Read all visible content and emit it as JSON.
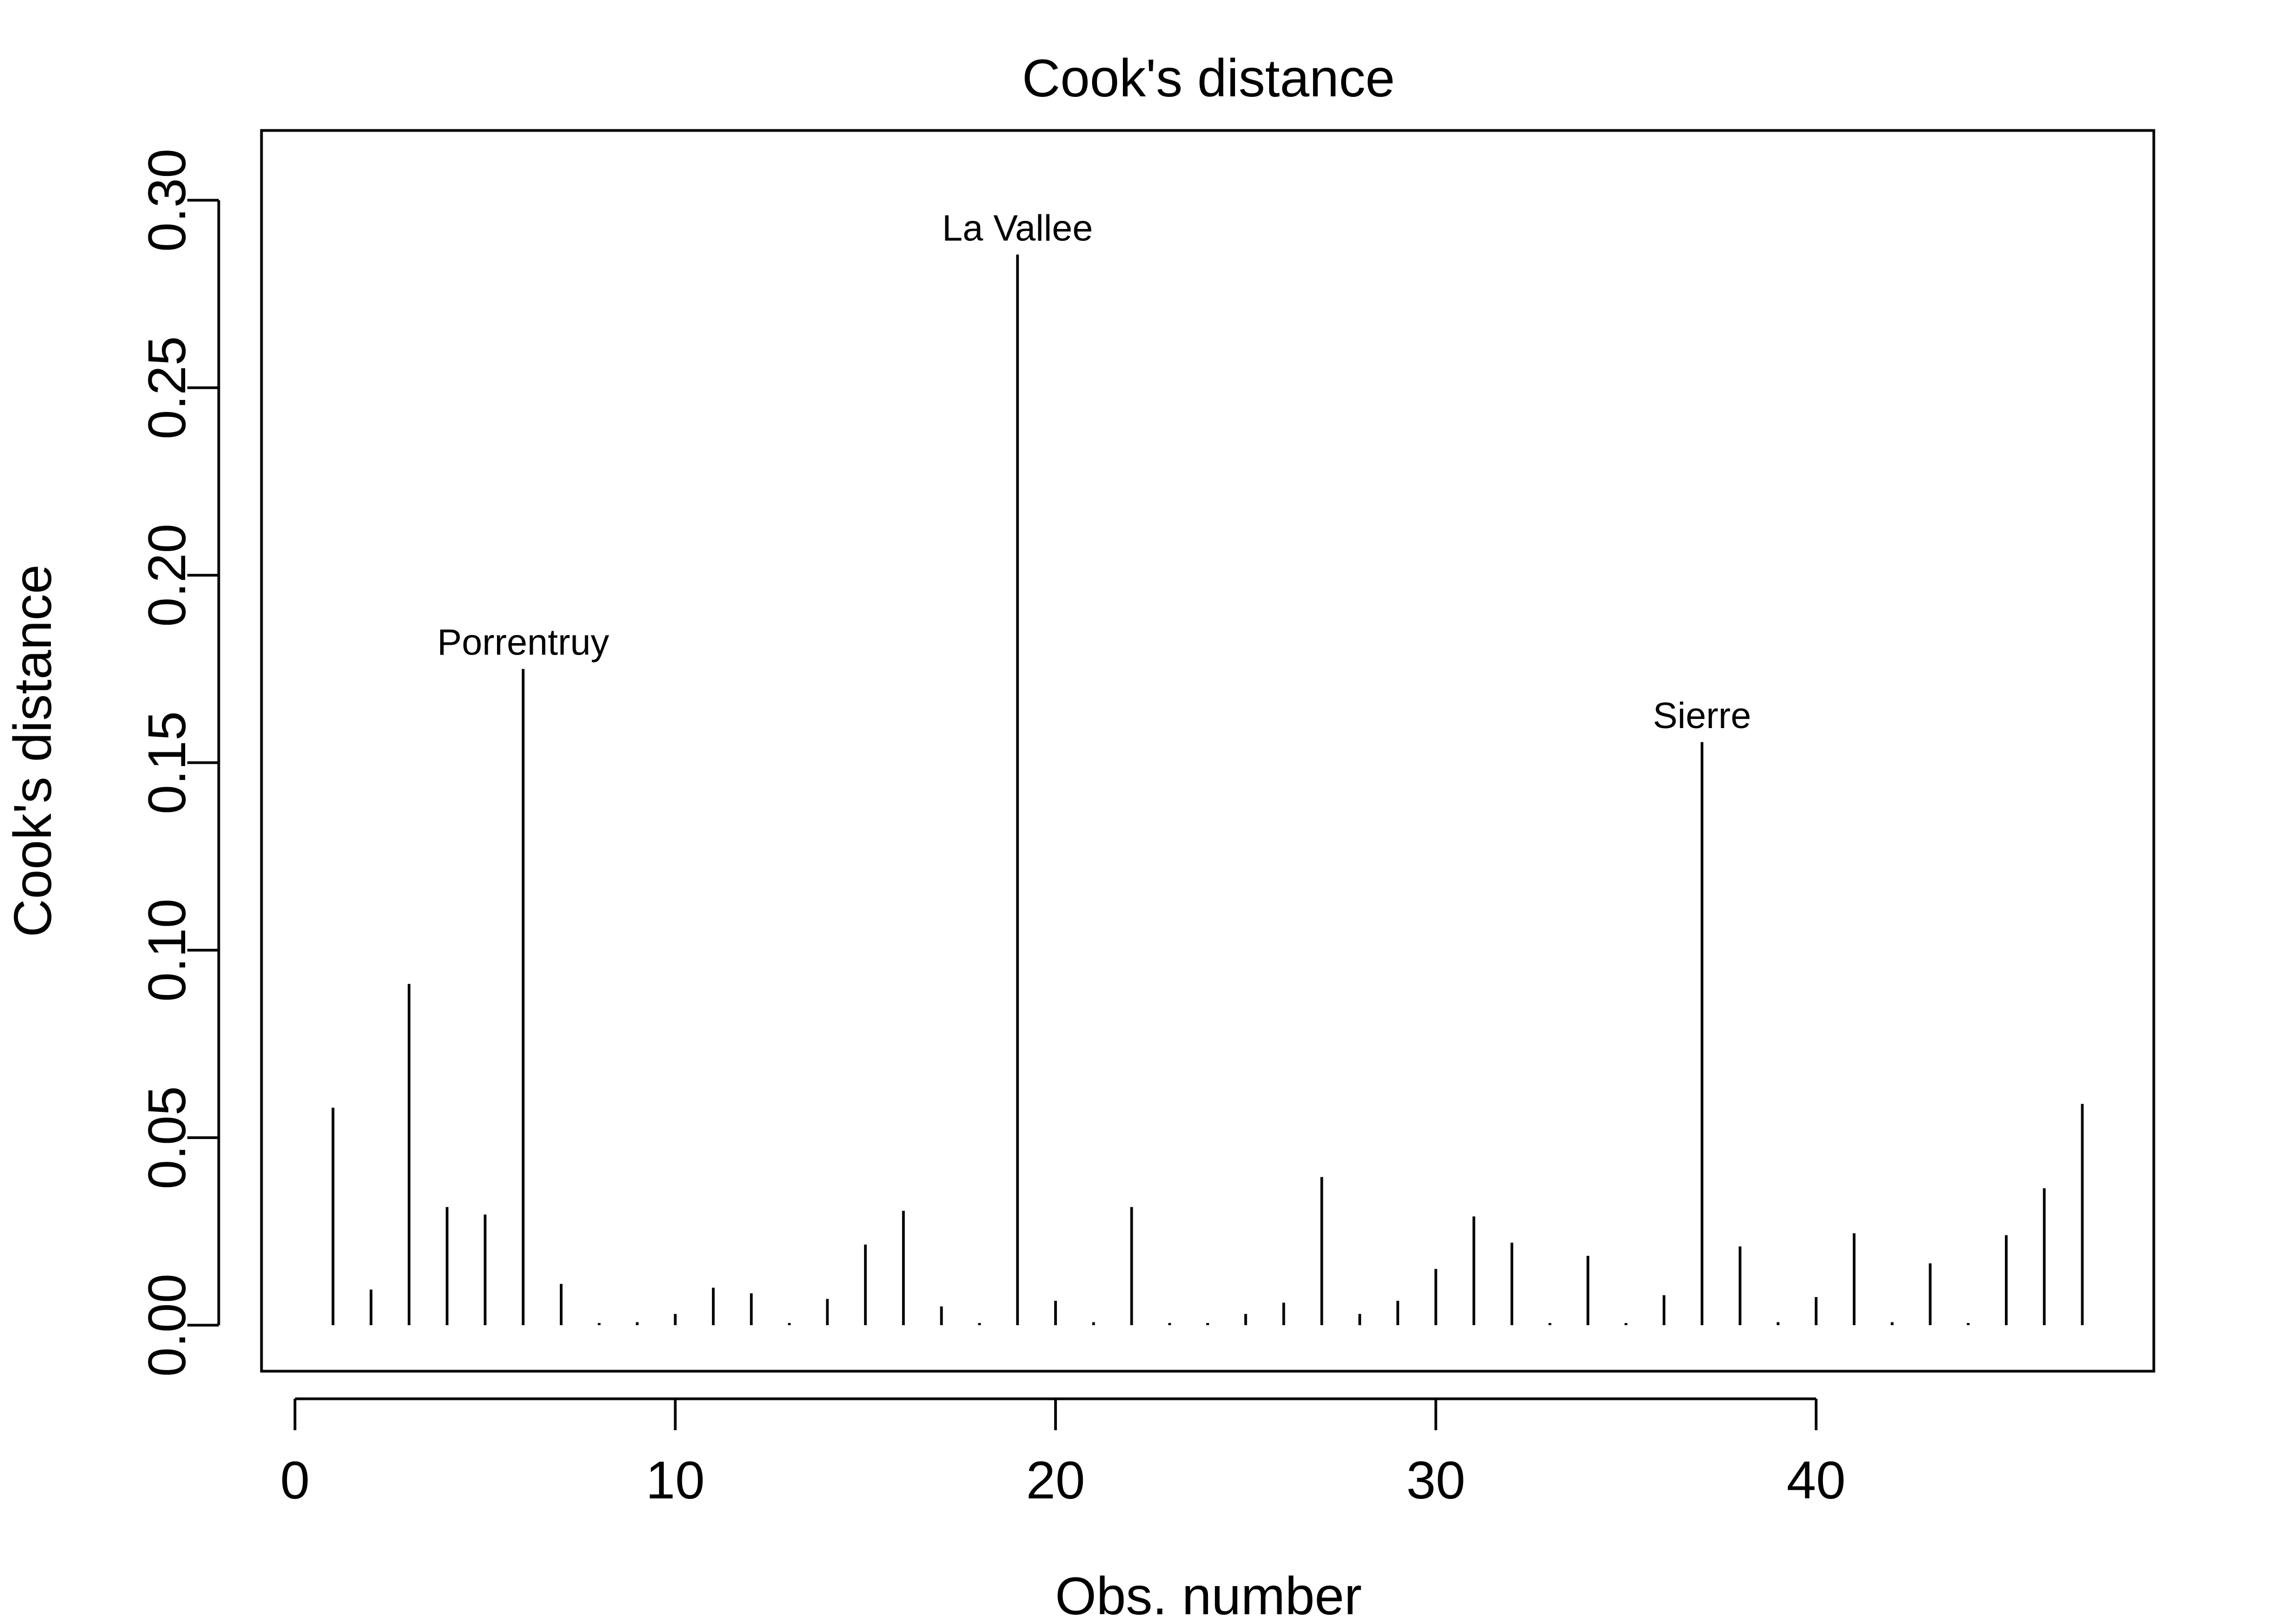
{
  "chart_data": {
    "type": "bar",
    "title": "Cook's distance",
    "xlabel": "Obs. number",
    "ylabel": "Cook's distance",
    "x": [
      1,
      2,
      3,
      4,
      5,
      6,
      7,
      8,
      9,
      10,
      11,
      12,
      13,
      14,
      15,
      16,
      17,
      18,
      19,
      20,
      21,
      22,
      23,
      24,
      25,
      26,
      27,
      28,
      29,
      30,
      31,
      32,
      33,
      34,
      35,
      36,
      37,
      38,
      39,
      40,
      41,
      42,
      43,
      44,
      45,
      46,
      47
    ],
    "values": [
      0.058,
      0.0095,
      0.091,
      0.0315,
      0.0295,
      0.175,
      0.011,
      0.0005,
      0.0008,
      0.003,
      0.01,
      0.0085,
      0.0004,
      0.007,
      0.0215,
      0.0305,
      0.005,
      0.0003,
      0.2855,
      0.0065,
      0.0008,
      0.0315,
      0.0005,
      0.0004,
      0.003,
      0.006,
      0.0395,
      0.003,
      0.0065,
      0.015,
      0.029,
      0.022,
      0.0004,
      0.0185,
      0.0004,
      0.008,
      0.1555,
      0.021,
      0.0008,
      0.0075,
      0.0245,
      0.0008,
      0.0165,
      0.0004,
      0.024,
      0.0365,
      0.059
    ],
    "annotations": [
      {
        "x": 6,
        "label": "Porrentruy"
      },
      {
        "x": 19,
        "label": "La Vallee"
      },
      {
        "x": 37,
        "label": "Sierre"
      }
    ],
    "xticks": [
      0,
      10,
      20,
      30,
      40
    ],
    "xtick_labels": [
      "0",
      "10",
      "20",
      "30",
      "40"
    ],
    "yticks": [
      0.0,
      0.05,
      0.1,
      0.15,
      0.2,
      0.25,
      0.3
    ],
    "ytick_labels": [
      "0.00",
      "0.05",
      "0.10",
      "0.15",
      "0.20",
      "0.25",
      "0.30"
    ],
    "xlim": [
      -0.88,
      48.88
    ],
    "ylim": [
      -0.01227,
      0.3186
    ],
    "grid": false,
    "legend": "none"
  }
}
